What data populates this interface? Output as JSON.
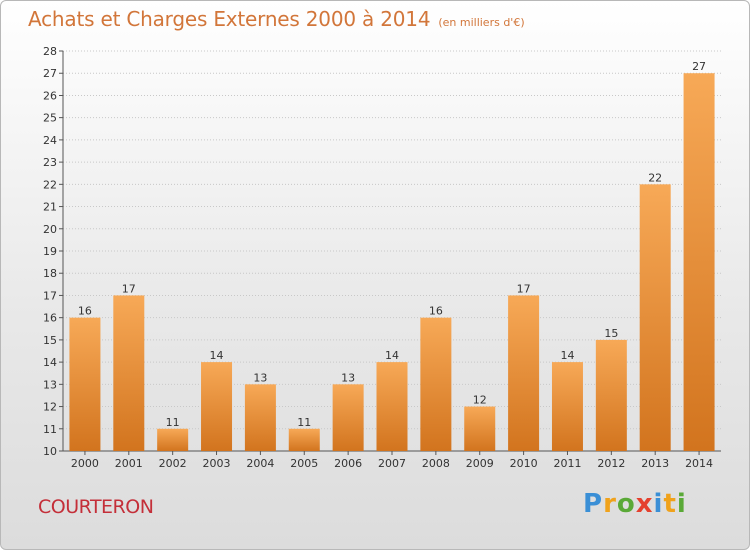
{
  "title": "Achats et Charges Externes 2000 à 2014",
  "subtitle": "(en milliers d'€)",
  "commune": "COURTERON",
  "logo": {
    "letters": [
      "P",
      "r",
      "o",
      "x",
      "i",
      "t",
      "i"
    ],
    "colors": [
      "#3a8fd6",
      "#f0a21b",
      "#5aa937",
      "#e5412e",
      "#3a8fd6",
      "#f0a21b",
      "#5aa937"
    ]
  },
  "colors": {
    "bar_light": "#f6a85a",
    "bar_dark": "#d2741e",
    "title": "#d2763a",
    "commune": "#c42f39"
  },
  "chart_data": {
    "type": "bar",
    "title": "Achats et Charges Externes 2000 à 2014",
    "subtitle": "(en milliers d'€)",
    "categories": [
      "2000",
      "2001",
      "2002",
      "2003",
      "2004",
      "2005",
      "2006",
      "2007",
      "2008",
      "2009",
      "2010",
      "2011",
      "2012",
      "2013",
      "2014"
    ],
    "values": [
      16,
      17,
      11,
      14,
      13,
      11,
      13,
      14,
      16,
      12,
      17,
      14,
      15,
      22,
      27
    ],
    "ylim": [
      10,
      28
    ],
    "yticks": [
      10,
      11,
      12,
      13,
      14,
      15,
      16,
      17,
      18,
      19,
      20,
      21,
      22,
      23,
      24,
      25,
      26,
      27,
      28
    ],
    "grid": true,
    "xlabel": "",
    "ylabel": ""
  }
}
